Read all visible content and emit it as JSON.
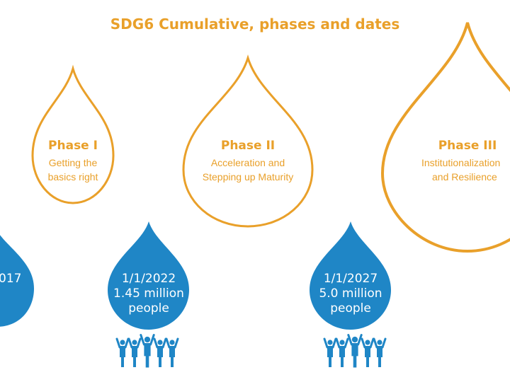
{
  "title": "SDG6 Cumulative, phases and dates",
  "colors": {
    "orange": "#e9a02a",
    "blue": "#1f86c6",
    "white": "#ffffff"
  },
  "phases": [
    {
      "title": "Phase I",
      "lines": [
        "Getting the",
        "basics right"
      ]
    },
    {
      "title": "Phase II",
      "lines": [
        "Acceleration and",
        "Stepping up Maturity"
      ]
    },
    {
      "title": "Phase III",
      "lines": [
        "Institutionalization",
        "and Resilience"
      ]
    }
  ],
  "milestones": [
    {
      "lines": [
        "017"
      ]
    },
    {
      "lines": [
        "1/1/2022",
        "1.45 million",
        "people"
      ]
    },
    {
      "lines": [
        "1/1/2027",
        "5.0 million",
        "people"
      ]
    }
  ],
  "icons": [
    "people-group-icon",
    "people-group-icon"
  ]
}
